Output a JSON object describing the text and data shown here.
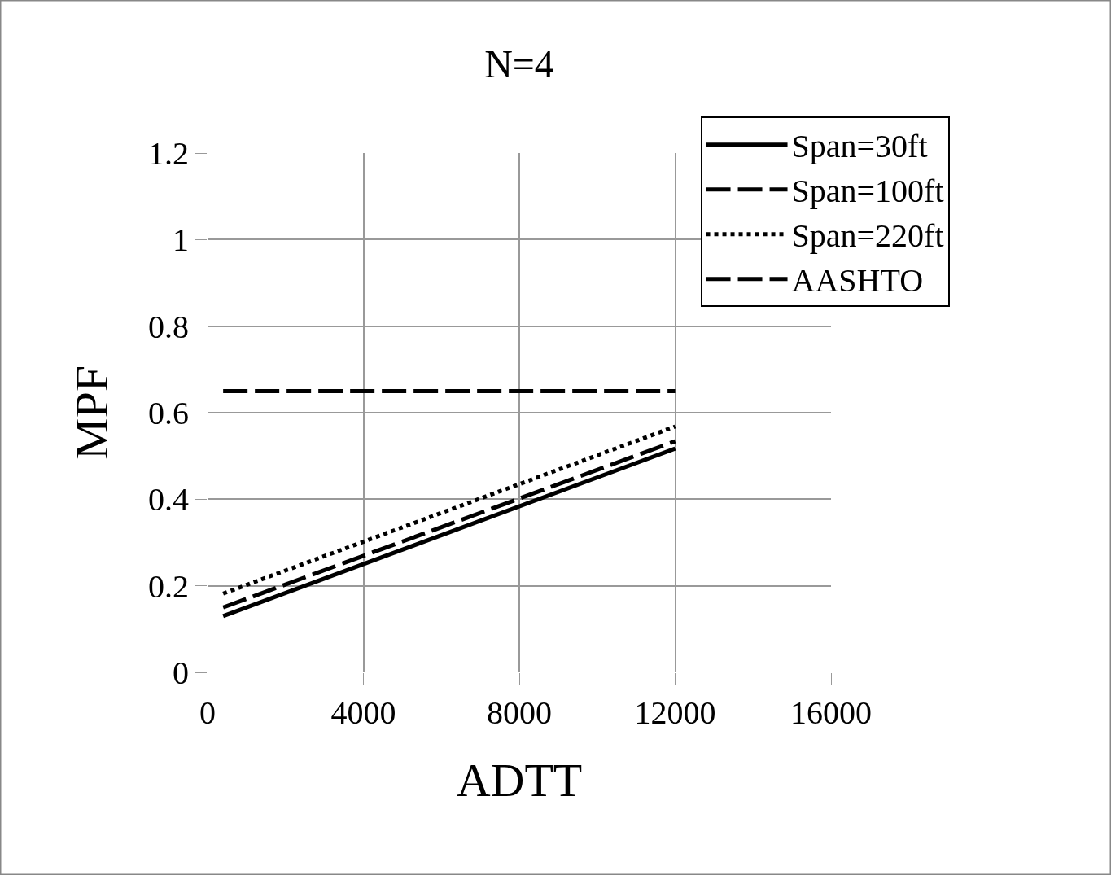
{
  "chart_data": {
    "type": "line",
    "title": "N=4",
    "xlabel": "ADTT",
    "ylabel": "MPF",
    "xlim": [
      0,
      16000
    ],
    "xticks": [
      0,
      4000,
      8000,
      12000,
      16000
    ],
    "ylim": [
      0,
      1.2
    ],
    "yticks": [
      0,
      {
        "value": 0.2,
        "label": "0.2"
      },
      {
        "value": 0.4,
        "label": "0.4"
      },
      {
        "value": 0.6,
        "label": "0.6"
      },
      {
        "value": 0.8,
        "label": "0.8"
      },
      1,
      {
        "value": 1.2,
        "label": "1.2"
      }
    ],
    "x": [
      400,
      12000
    ],
    "series": [
      {
        "name": "Span=30ft",
        "color": "#000000",
        "values": [
          0.13,
          0.517
        ],
        "line_style": "solid"
      },
      {
        "name": "Span=100ft",
        "color": "#000000",
        "values": [
          0.15,
          0.534
        ],
        "line_style": "dashed"
      },
      {
        "name": "Span=220ft",
        "color": "#000000",
        "values": [
          0.182,
          0.568
        ],
        "line_style": "dotted"
      },
      {
        "name": "AASHTO",
        "color": "#000000",
        "values": [
          0.65,
          0.65
        ],
        "line_style": "dashed"
      }
    ],
    "grid": true,
    "legend": "top right",
    "marker": "none"
  }
}
